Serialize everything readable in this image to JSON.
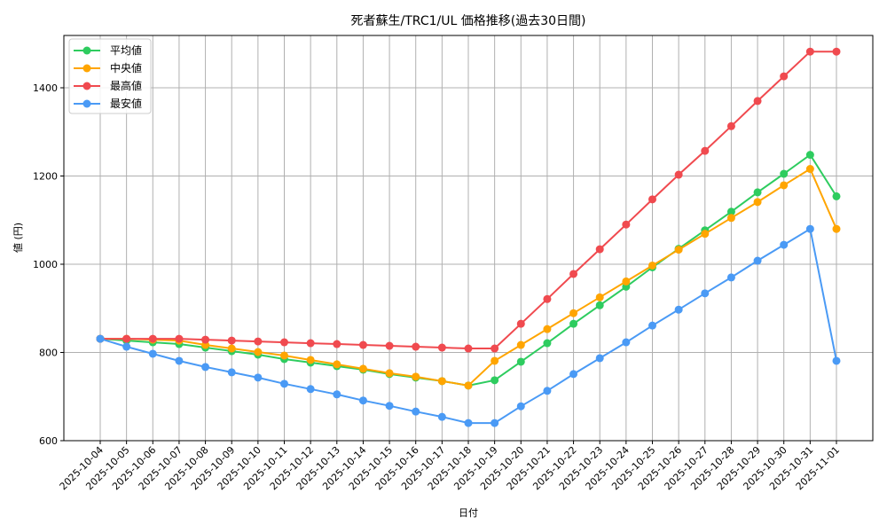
{
  "chart_data": {
    "type": "line",
    "title": "死者蘇生/TRC1/UL 価格推移(過去30日間)",
    "xlabel": "日付",
    "ylabel": "値 (円)",
    "ylim": [
      600,
      1520
    ],
    "yticks": [
      600,
      800,
      1000,
      1200,
      1400
    ],
    "grid": true,
    "legend_position": "upper left",
    "categories": [
      "2025-10-04",
      "2025-10-05",
      "2025-10-06",
      "2025-10-07",
      "2025-10-08",
      "2025-10-09",
      "2025-10-10",
      "2025-10-11",
      "2025-10-12",
      "2025-10-13",
      "2025-10-14",
      "2025-10-15",
      "2025-10-16",
      "2025-10-17",
      "2025-10-18",
      "2025-10-19",
      "2025-10-20",
      "2025-10-21",
      "2025-10-22",
      "2025-10-23",
      "2025-10-24",
      "2025-10-25",
      "2025-10-26",
      "2025-10-27",
      "2025-10-28",
      "2025-10-29",
      "2025-10-30",
      "2025-10-31",
      "2025-11-01"
    ],
    "series": [
      {
        "name": "平均値",
        "color": "#2ecc5f",
        "values": [
          831,
          827,
          823,
          819,
          811,
          803,
          795,
          785,
          777,
          769,
          761,
          751,
          743,
          735,
          725,
          737,
          779,
          821,
          865,
          907,
          949,
          993,
          1035,
          1077,
          1119,
          1163,
          1205,
          1248,
          1154
        ]
      },
      {
        "name": "中央値",
        "color": "#ffa500",
        "values": [
          831,
          831,
          829,
          827,
          817,
          809,
          801,
          793,
          783,
          773,
          763,
          753,
          745,
          735,
          725,
          781,
          817,
          853,
          889,
          925,
          961,
          997,
          1033,
          1069,
          1105,
          1141,
          1179,
          1216,
          1080
        ]
      },
      {
        "name": "最高値",
        "color": "#f04a4f",
        "values": [
          831,
          831,
          831,
          831,
          829,
          827,
          825,
          823,
          821,
          819,
          817,
          815,
          813,
          811,
          809,
          809,
          865,
          921,
          978,
          1034,
          1090,
          1147,
          1203,
          1257,
          1313,
          1370,
          1426,
          1482,
          1482
        ]
      },
      {
        "name": "最安値",
        "color": "#4a9af5",
        "values": [
          831,
          813,
          797,
          781,
          767,
          755,
          743,
          729,
          717,
          705,
          691,
          679,
          666,
          654,
          640,
          640,
          678,
          713,
          751,
          787,
          823,
          861,
          897,
          934,
          970,
          1008,
          1044,
          1080,
          781
        ]
      }
    ]
  }
}
